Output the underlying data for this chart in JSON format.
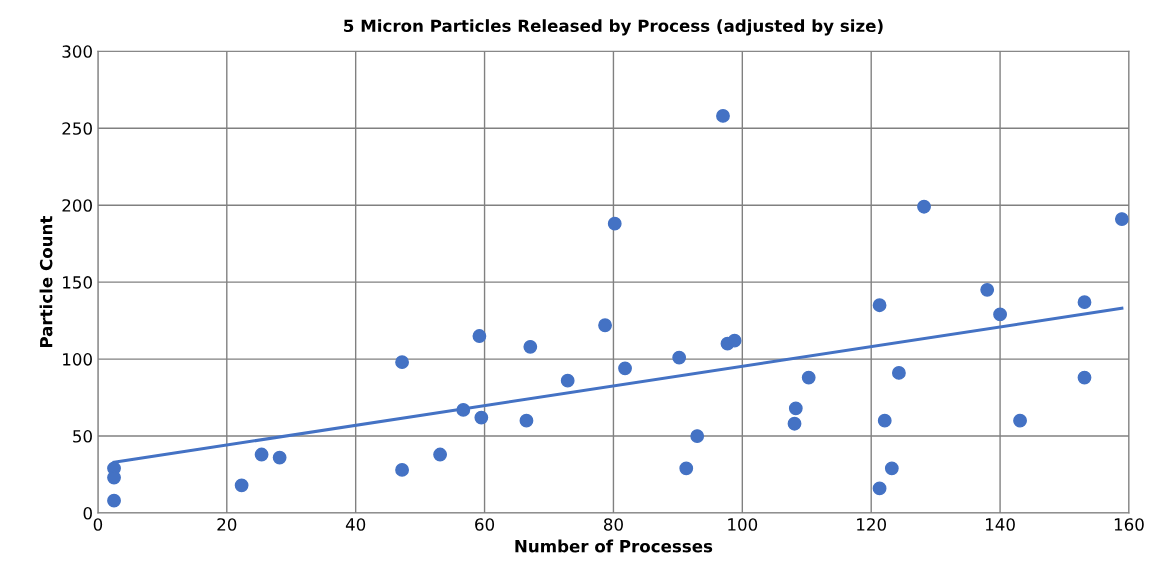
{
  "chart_data": {
    "type": "scatter",
    "title": "5 Micron Particles Released by Process (adjusted by size)",
    "xlabel": "Number of Processes",
    "ylabel": "Particle Count",
    "xlim": [
      0,
      160
    ],
    "xticks": [
      0,
      20,
      40,
      60,
      80,
      100,
      120,
      140,
      160
    ],
    "ylim": [
      0,
      300
    ],
    "yticks": [
      0,
      50,
      100,
      150,
      200,
      250,
      300
    ],
    "grid": true,
    "legend": false,
    "series": [
      {
        "marker": "circle",
        "color": "#4472c4",
        "x": [
          2.5,
          2.5,
          2.5,
          22.3,
          25.4,
          28.2,
          47.2,
          47.2,
          53.1,
          56.7,
          59.2,
          59.5,
          66.5,
          67.1,
          72.9,
          78.7,
          80.2,
          81.8,
          90.2,
          91.3,
          93.0,
          97.0,
          97.7,
          98.8,
          108.1,
          108.3,
          110.3,
          121.3,
          121.3,
          122.1,
          123.2,
          124.3,
          128.2,
          138.0,
          140.0,
          143.1,
          153.1,
          153.1,
          158.9
        ],
        "values": [
          29,
          23,
          8,
          18,
          38,
          36,
          98,
          28,
          38,
          67,
          115,
          62,
          60,
          108,
          86,
          122,
          188,
          94,
          101,
          29,
          50,
          258,
          110,
          112,
          58,
          68,
          88,
          135,
          16,
          60,
          29,
          91,
          199,
          145,
          129,
          60,
          88,
          137,
          191
        ]
      },
      {
        "type": "line",
        "marker": "none",
        "color": "#4472c4",
        "x": [
          2.5,
          158.9
        ],
        "values": [
          33,
          133
        ]
      }
    ]
  }
}
